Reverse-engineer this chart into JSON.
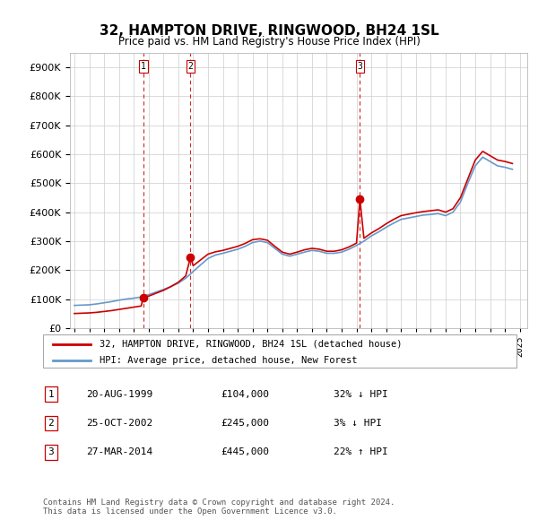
{
  "title": "32, HAMPTON DRIVE, RINGWOOD, BH24 1SL",
  "subtitle": "Price paid vs. HM Land Registry's House Price Index (HPI)",
  "ylabel_ticks": [
    "£0",
    "£100K",
    "£200K",
    "£300K",
    "£400K",
    "£500K",
    "£600K",
    "£700K",
    "£800K",
    "£900K"
  ],
  "ytick_values": [
    0,
    100000,
    200000,
    300000,
    400000,
    500000,
    600000,
    700000,
    800000,
    900000
  ],
  "ylim": [
    0,
    950000
  ],
  "xlim_start": 1995.0,
  "xlim_end": 2025.5,
  "house_color": "#cc0000",
  "hpi_color": "#6699cc",
  "transaction_color": "#cc0000",
  "vline_color": "#cc0000",
  "legend_house_label": "32, HAMPTON DRIVE, RINGWOOD, BH24 1SL (detached house)",
  "legend_hpi_label": "HPI: Average price, detached house, New Forest",
  "transactions": [
    {
      "num": 1,
      "date_x": 1999.63,
      "price": 104000,
      "label": "1",
      "pct": "32%",
      "dir": "↓",
      "date_str": "20-AUG-1999",
      "price_str": "£104,000"
    },
    {
      "num": 2,
      "date_x": 2002.82,
      "price": 245000,
      "label": "2",
      "pct": "3%",
      "dir": "↓",
      "date_str": "25-OCT-2002",
      "price_str": "£245,000"
    },
    {
      "num": 3,
      "date_x": 2014.23,
      "price": 445000,
      "label": "3",
      "pct": "22%",
      "dir": "↑",
      "date_str": "27-MAR-2014",
      "price_str": "£445,000"
    }
  ],
  "footer": "Contains HM Land Registry data © Crown copyright and database right 2024.\nThis data is licensed under the Open Government Licence v3.0.",
  "hpi_data_x": [
    1995.0,
    1995.5,
    1996.0,
    1996.5,
    1997.0,
    1997.5,
    1998.0,
    1998.5,
    1999.0,
    1999.5,
    2000.0,
    2000.5,
    2001.0,
    2001.5,
    2002.0,
    2002.5,
    2003.0,
    2003.5,
    2004.0,
    2004.5,
    2005.0,
    2005.5,
    2006.0,
    2006.5,
    2007.0,
    2007.5,
    2008.0,
    2008.5,
    2009.0,
    2009.5,
    2010.0,
    2010.5,
    2011.0,
    2011.5,
    2012.0,
    2012.5,
    2013.0,
    2013.5,
    2014.0,
    2014.5,
    2015.0,
    2015.5,
    2016.0,
    2016.5,
    2017.0,
    2017.5,
    2018.0,
    2018.5,
    2019.0,
    2019.5,
    2020.0,
    2020.5,
    2021.0,
    2021.5,
    2022.0,
    2022.5,
    2023.0,
    2023.5,
    2024.0,
    2024.5
  ],
  "hpi_data_y": [
    78000,
    79000,
    80000,
    83000,
    87000,
    91000,
    96000,
    100000,
    103000,
    107000,
    115000,
    124000,
    133000,
    143000,
    155000,
    172000,
    195000,
    218000,
    240000,
    252000,
    258000,
    265000,
    272000,
    282000,
    295000,
    300000,
    295000,
    275000,
    255000,
    248000,
    255000,
    262000,
    268000,
    265000,
    258000,
    258000,
    262000,
    272000,
    285000,
    300000,
    318000,
    332000,
    348000,
    362000,
    375000,
    380000,
    385000,
    390000,
    392000,
    395000,
    388000,
    400000,
    435000,
    500000,
    560000,
    590000,
    575000,
    560000,
    555000,
    548000
  ],
  "house_data_x": [
    1995.0,
    1995.5,
    1996.0,
    1996.5,
    1997.0,
    1997.5,
    1998.0,
    1998.5,
    1999.0,
    1999.5,
    1999.63,
    2000.0,
    2000.5,
    2001.0,
    2001.5,
    2002.0,
    2002.5,
    2002.82,
    2003.0,
    2003.5,
    2004.0,
    2004.5,
    2005.0,
    2005.5,
    2006.0,
    2006.5,
    2007.0,
    2007.5,
    2008.0,
    2008.5,
    2009.0,
    2009.5,
    2010.0,
    2010.5,
    2011.0,
    2011.5,
    2012.0,
    2012.5,
    2013.0,
    2013.5,
    2014.0,
    2014.23,
    2014.5,
    2015.0,
    2015.5,
    2016.0,
    2016.5,
    2017.0,
    2017.5,
    2018.0,
    2018.5,
    2019.0,
    2019.5,
    2020.0,
    2020.5,
    2021.0,
    2021.5,
    2022.0,
    2022.5,
    2023.0,
    2023.5,
    2024.0,
    2024.5
  ],
  "house_data_y": [
    50000,
    51000,
    52000,
    54000,
    57000,
    60000,
    64000,
    68000,
    72000,
    76000,
    104000,
    110000,
    120000,
    130000,
    143000,
    158000,
    180000,
    245000,
    215000,
    235000,
    255000,
    263000,
    268000,
    275000,
    282000,
    292000,
    305000,
    308000,
    303000,
    282000,
    262000,
    255000,
    262000,
    270000,
    275000,
    272000,
    265000,
    265000,
    270000,
    280000,
    293000,
    445000,
    310000,
    328000,
    343000,
    360000,
    375000,
    388000,
    393000,
    398000,
    402000,
    405000,
    408000,
    400000,
    412000,
    450000,
    515000,
    580000,
    610000,
    595000,
    580000,
    575000,
    568000
  ]
}
